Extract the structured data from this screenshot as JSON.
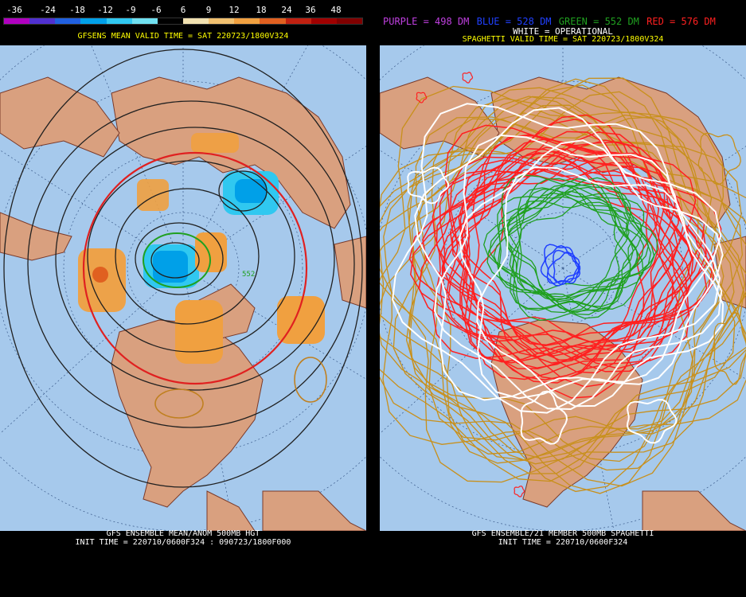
{
  "left": {
    "scale_labels": [
      "-36",
      "-24",
      "-18",
      "-12",
      "-9",
      "-6",
      "6",
      "9",
      "12",
      "18",
      "24",
      "36",
      "48"
    ],
    "scale_colors": [
      "#b000c0",
      "#5030d0",
      "#2060e0",
      "#00a0e8",
      "#30c8f0",
      "#70e0f0",
      "#000000",
      "#f0e0b0",
      "#f0c070",
      "#f0a040",
      "#e06020",
      "#c02010",
      "#a00000",
      "#800000"
    ],
    "header": "GFSENS MEAN VALID TIME = SAT 220723/1800V324",
    "footer_line1": "GFS ENSEMBLE MEAN/ANOM 500MB HGT",
    "footer_line2": "INIT TIME = 220710/0600F324 : 090723/1800F000",
    "small_label": "552"
  },
  "right": {
    "legend": [
      {
        "text": "PURPLE = 498 DM",
        "color": "#c040e0"
      },
      {
        "text": "BLUE = 528 DM",
        "color": "#2040ff"
      },
      {
        "text": "GREEN = 552 DM",
        "color": "#20a020"
      },
      {
        "text": "RED = 576 DM",
        "color": "#ff2020"
      }
    ],
    "operational": "WHITE = OPERATIONAL",
    "header": "SPAGHETTI VALID TIME = SAT 220723/1800V324",
    "footer_line1": "GFS ENSEMBLE/21 MEMBER 500MB SPAGHETTI",
    "footer_line2": "INIT TIME = 220710/0600F324"
  },
  "colors": {
    "ocean": "#a6c9ec",
    "land": "#d9a07f",
    "border": "#7a3a2a"
  }
}
